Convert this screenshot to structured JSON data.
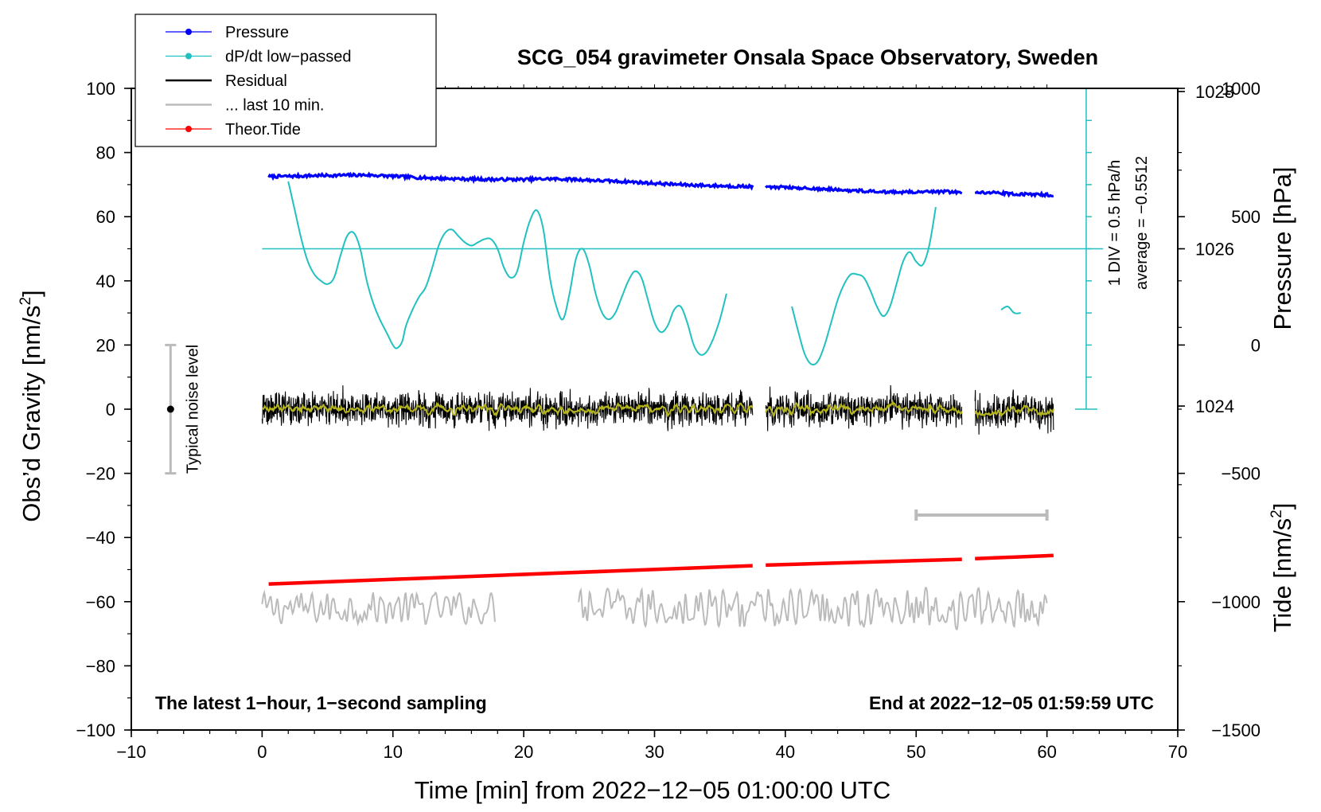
{
  "chart_data": {
    "type": "line",
    "title": "SCG_054 gravimeter Onsala Space Observatory, Sweden",
    "xlabel": "Time [min] from 2022−12−05 01:00:00 UTC",
    "ylabel_main": "Obs’d Gravity [nm/s",
    "ylabel_main_sup": "2",
    "ylabel_main_end": "]",
    "ylabel_pressure": "Pressure [hPa]",
    "ylabel_tide": "Tide [nm/s",
    "ylabel_tide_sup": "2",
    "ylabel_tide_end": "]",
    "xlim": [
      -10,
      70
    ],
    "ylim": [
      -100,
      100
    ],
    "x_ticks": [
      -10,
      0,
      10,
      20,
      30,
      40,
      50,
      60,
      70
    ],
    "x_tick_labels": [
      "−10",
      "0",
      "10",
      "20",
      "30",
      "40",
      "50",
      "60",
      "70"
    ],
    "y_ticks": [
      100,
      80,
      60,
      40,
      20,
      0,
      -20,
      -40,
      -60,
      -80,
      -100
    ],
    "y_tick_labels": [
      "100",
      "80",
      "60",
      "40",
      "20",
      "0",
      "−20",
      "−40",
      "−60",
      "−80",
      "−100"
    ],
    "pressure_ticks": [
      1028,
      1026,
      1024
    ],
    "pressure_tick_labels": [
      "1028",
      "1026",
      "1024"
    ],
    "pressure_scale": {
      "ref_value": 1026,
      "ref_y": 50,
      "units_per_y": 0.0408
    },
    "tide_ticks": [
      1000,
      500,
      0,
      -500,
      -1000,
      -1500
    ],
    "tide_tick_labels": [
      "1000",
      "500",
      "0",
      "−500",
      "−1000",
      "−1500"
    ],
    "tide_scale": {
      "ref_value": -1500,
      "ref_y": -100,
      "units_per_y": 12.5
    },
    "legend": {
      "position": "top-left",
      "entries": [
        {
          "label": "Pressure",
          "color": "#0000ff",
          "marker": true
        },
        {
          "label": "dP/dt low−passed",
          "color": "#22c1c1",
          "marker": true
        },
        {
          "label": "Residual",
          "color": "#000000",
          "marker": false
        },
        {
          "label": "... last 10 min.",
          "color": "#bbbbbb",
          "marker": false
        },
        {
          "label": "Theor.Tide",
          "color": "#ff0000",
          "marker": true
        }
      ]
    },
    "colors": {
      "pressure": "#0000ff",
      "dpdt": "#22c1c1",
      "residual": "#000000",
      "residual_smooth": "#b5b51e",
      "last10": "#bbbbbb",
      "tide": "#ff0000",
      "noise": "#bbbbbb"
    },
    "annotations": {
      "noise_label": "Typical noise level",
      "noise_bar": {
        "x": -7,
        "ymin": -20,
        "ymax": 20,
        "center": 0
      },
      "div_label": "1 DIV = 0.5 hPa/h",
      "average_label": "average = −0.5512",
      "dpdt_scale": {
        "x": 63,
        "ymin": 0,
        "ymax": 100,
        "step": 10
      },
      "dpdt_average_line_y": 50,
      "last10_bar": {
        "x_start": 50,
        "x_end": 60,
        "y": -33
      },
      "bottom_left": "The latest 1−hour, 1−second sampling",
      "bottom_right": "End at 2022−12−05 01:59:59 UTC"
    },
    "series": [
      {
        "name": "Pressure",
        "segments": [
          {
            "x": [
              0.5,
              2,
              4,
              6,
              8,
              10,
              12,
              14,
              16,
              18,
              20,
              22,
              24,
              26,
              28,
              30,
              32,
              34,
              36,
              37.5
            ],
            "y": [
              72.5,
              72.6,
              72.8,
              72.9,
              73.0,
              72.6,
              72.2,
              71.9,
              71.7,
              71.6,
              71.6,
              71.8,
              71.6,
              71.2,
              70.9,
              70.4,
              70.0,
              69.7,
              69.5,
              69.4
            ]
          },
          {
            "x": [
              38.5,
              40,
              42,
              44,
              46,
              48,
              50,
              52,
              53.5
            ],
            "y": [
              69.3,
              69.2,
              68.8,
              68.4,
              68.0,
              67.7,
              67.7,
              67.8,
              67.6
            ]
          },
          {
            "x": [
              54.5,
              56,
              58,
              60,
              60.5
            ],
            "y": [
              67.6,
              67.4,
              67.0,
              66.8,
              66.8
            ]
          }
        ]
      },
      {
        "name": "dP/dt low−passed",
        "segments": [
          {
            "x": [
              2.0,
              2.5,
              3.0,
              3.5,
              4.0,
              4.5,
              5.0,
              5.5,
              6.0,
              6.5,
              7.0,
              7.5,
              8.0,
              8.5,
              9.0,
              9.5,
              10.0,
              10.3,
              10.7,
              11.0,
              11.5,
              12.0,
              12.5,
              13.0,
              13.5,
              14.0,
              14.5,
              15.0,
              15.5,
              16.0,
              16.5,
              17.0,
              17.5,
              18.0,
              18.5,
              19.0,
              19.5,
              20.0,
              20.5,
              21.0,
              21.5,
              22.0,
              22.5,
              23.0,
              23.5,
              24.0,
              24.5,
              25.0,
              25.5,
              26.0,
              26.5,
              27.0,
              27.5,
              28.0,
              28.5,
              29.0,
              29.5,
              30.0,
              30.5,
              31.0,
              31.5,
              32.0,
              32.5,
              33.0,
              33.5,
              34.0,
              34.5
            ],
            "y": [
              71,
              62,
              53,
              46,
              42,
              40,
              39,
              41,
              48,
              54,
              55,
              50,
              40,
              33,
              28,
              24,
              20,
              19,
              21,
              26,
              31,
              35,
              38,
              44,
              51,
              55,
              56,
              54,
              52,
              51,
              52,
              53,
              53,
              50,
              44,
              41,
              43,
              52,
              59,
              62,
              56,
              41,
              32,
              28,
              36,
              47,
              50,
              45,
              36,
              30,
              28,
              30,
              35,
              40,
              43,
              41,
              34,
              27,
              24,
              26,
              31,
              32,
              27,
              20,
              17,
              18,
              22
            ]
          },
          {
            "x": [
              34.5,
              35.0,
              35.5
            ],
            "y": [
              22,
              28,
              36
            ]
          },
          {
            "x": [
              40.5,
              41.0,
              41.5,
              42.0,
              42.5,
              43.0,
              43.5,
              44.0,
              44.5,
              45.0,
              45.5,
              46.0,
              46.5,
              47.0,
              47.5,
              48.0,
              48.5,
              49.0,
              49.5,
              50.0,
              50.5,
              51.0,
              51.5
            ],
            "y": [
              32,
              24,
              17,
              14,
              15,
              20,
              27,
              34,
              39,
              42,
              42,
              41,
              37,
              32,
              29,
              32,
              39,
              46,
              49,
              46,
              45,
              51,
              63
            ]
          },
          {
            "x": [
              56.5,
              57.0,
              57.5,
              58.0
            ],
            "y": [
              31,
              32,
              30,
              30
            ]
          }
        ]
      },
      {
        "name": "Residual",
        "segments": [
          {
            "x_start": 0,
            "x_end": 37.5,
            "y_center": 0,
            "amplitude": 6
          },
          {
            "x_start": 38.5,
            "x_end": 53.5,
            "y_center": 0,
            "amplitude": 6
          },
          {
            "x_start": 54.5,
            "x_end": 60.5,
            "y_center": -1,
            "amplitude": 6
          }
        ]
      },
      {
        "name": "... last 10 min.",
        "segments": [
          {
            "x_start": 0,
            "x_end": 17.8,
            "y_center": -62,
            "amplitude": 5
          },
          {
            "x_start": 24.2,
            "x_end": 60,
            "y_center": -62,
            "amplitude": 6
          }
        ]
      },
      {
        "name": "Theor.Tide",
        "segments": [
          {
            "x": [
              0.5,
              37.5
            ],
            "y": [
              -54.5,
              -48.8
            ]
          },
          {
            "x": [
              38.5,
              53.5
            ],
            "y": [
              -48.6,
              -46.8
            ]
          },
          {
            "x": [
              54.5,
              60.5
            ],
            "y": [
              -46.6,
              -45.6
            ]
          }
        ]
      }
    ]
  }
}
